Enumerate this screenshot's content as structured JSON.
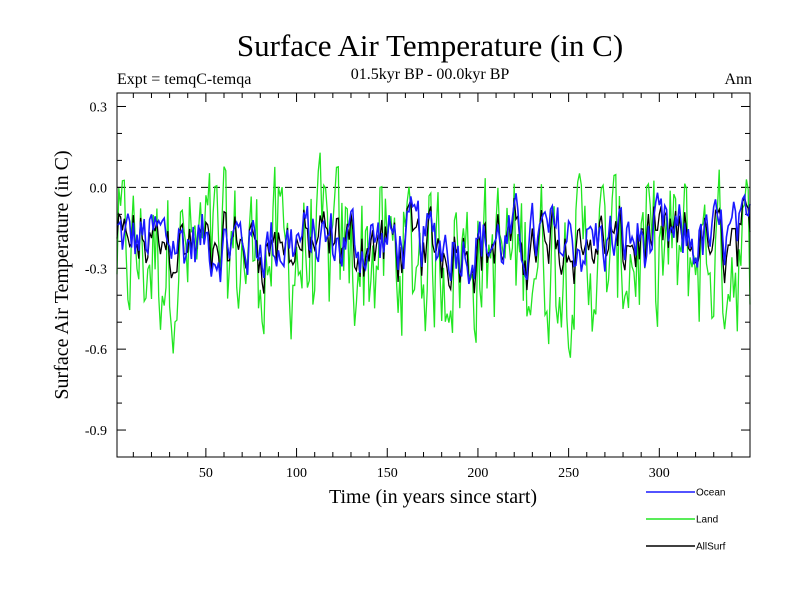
{
  "chart_data": {
    "type": "line",
    "title": "Surface Air Temperature (in C)",
    "subtitle": "01.5kyr BP - 00.0kyr BP",
    "experiment": "Expt = temqC-temqa",
    "season": "Ann",
    "xlabel": "Time (in years since start)",
    "ylabel": "Surface Air Temperature (in C)",
    "xlim": [
      1,
      350
    ],
    "ylim": [
      -1.0,
      0.35
    ],
    "xticks": [
      50,
      100,
      150,
      200,
      250,
      300
    ],
    "yticks": [
      0.3,
      0.0,
      -0.3,
      -0.6,
      -0.9
    ],
    "ytick_labels": [
      "0.3",
      "0.0",
      "-0.3",
      "-0.6",
      "-0.9"
    ],
    "reference_line": 0.0,
    "series": [
      {
        "name": "Ocean",
        "color": "#1a1aff"
      },
      {
        "name": "Land",
        "color": "#22e622"
      },
      {
        "name": "AllSurf",
        "color": "#000000"
      }
    ]
  }
}
